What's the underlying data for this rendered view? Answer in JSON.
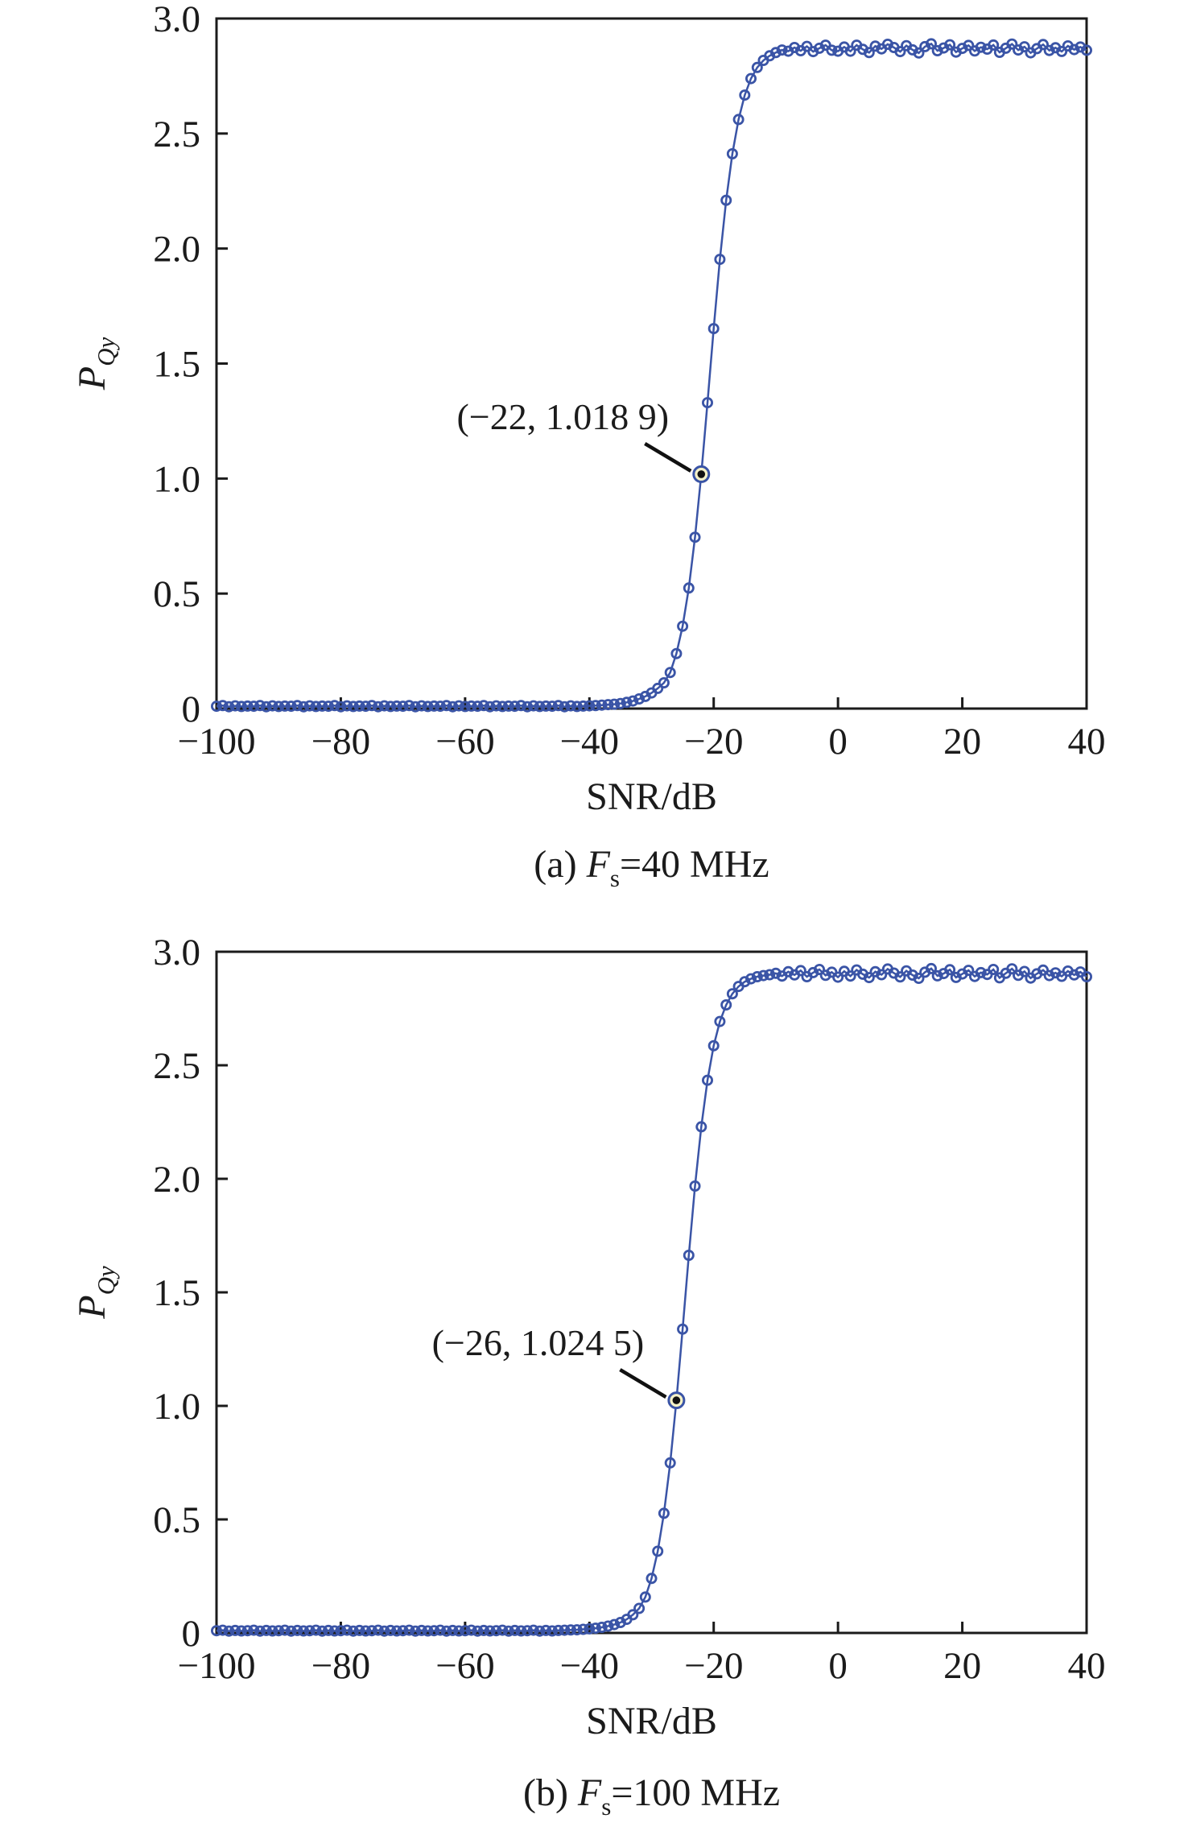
{
  "figure": {
    "background": "#ffffff",
    "panels": [
      "a",
      "b"
    ]
  },
  "chart_data": [
    {
      "type": "scatter-line",
      "panel": "a",
      "caption": {
        "prefix": "(a) ",
        "symbol": "F",
        "subscript": "s",
        "suffix": "=40 MHz"
      },
      "xlabel": "SNR/dB",
      "ylabel": {
        "symbol": "P",
        "subscript": "Qy"
      },
      "xlim": [
        -100,
        40
      ],
      "ylim": [
        0,
        3.0
      ],
      "grid": false,
      "legend": null,
      "x_ticks": {
        "values": [
          -100,
          -80,
          -60,
          -40,
          -20,
          0,
          20,
          40
        ],
        "labels": [
          "−100",
          "−80",
          "−60",
          "−40",
          "−20",
          "0",
          "20",
          "40"
        ]
      },
      "y_ticks": {
        "values": [
          0,
          0.5,
          1.0,
          1.5,
          2.0,
          2.5,
          3.0
        ],
        "labels": [
          "0",
          "0.5",
          "1.0",
          "1.5",
          "2.0",
          "2.5",
          "3.0"
        ]
      },
      "annotation": {
        "label": "(−22, 1.018 9)",
        "point": {
          "x": -22,
          "y": 1.0189
        }
      },
      "plateau_level": 2.872,
      "series": [
        {
          "name": "PQy-vs-SNR-40MHz",
          "marker": "open-circle",
          "x_start": -100,
          "x_step": 1,
          "y": [
            0.01,
            0.013,
            0.008,
            0.012,
            0.009,
            0.011,
            0.01,
            0.013,
            0.008,
            0.012,
            0.009,
            0.011,
            0.01,
            0.013,
            0.008,
            0.012,
            0.009,
            0.011,
            0.01,
            0.013,
            0.008,
            0.012,
            0.009,
            0.011,
            0.01,
            0.013,
            0.008,
            0.012,
            0.009,
            0.011,
            0.01,
            0.013,
            0.008,
            0.012,
            0.009,
            0.011,
            0.01,
            0.013,
            0.008,
            0.012,
            0.009,
            0.011,
            0.01,
            0.013,
            0.008,
            0.012,
            0.009,
            0.011,
            0.01,
            0.013,
            0.008,
            0.012,
            0.009,
            0.011,
            0.01,
            0.013,
            0.008,
            0.012,
            0.009,
            0.011,
            0.012,
            0.013,
            0.015,
            0.017,
            0.019,
            0.022,
            0.027,
            0.033,
            0.042,
            0.053,
            0.068,
            0.088,
            0.112,
            0.157,
            0.239,
            0.358,
            0.524,
            0.745,
            1.019,
            1.33,
            1.652,
            1.953,
            2.21,
            2.412,
            2.561,
            2.667,
            2.739,
            2.787,
            2.818,
            2.838,
            2.852,
            2.863,
            2.858,
            2.874,
            2.86,
            2.879,
            2.856,
            2.871,
            2.884,
            2.862,
            2.858,
            2.876,
            2.858,
            2.884,
            2.866,
            2.852,
            2.88,
            2.868,
            2.888,
            2.874,
            2.856,
            2.882,
            2.864,
            2.85,
            2.878,
            2.89,
            2.86,
            2.872,
            2.886,
            2.854,
            2.87,
            2.883,
            2.859,
            2.875,
            2.867,
            2.885,
            2.853,
            2.871,
            2.889,
            2.863,
            2.877,
            2.851,
            2.869,
            2.887,
            2.861,
            2.873,
            2.857,
            2.881,
            2.865,
            2.876,
            2.862
          ]
        }
      ],
      "colors": {
        "series": "#3a54a6",
        "axis": "#1b1b1b",
        "text": "#1b1b1b",
        "annotation_ring_fill": "#f5f2c8",
        "annotation_dot": "#111111",
        "leader": "#111111"
      }
    },
    {
      "type": "scatter-line",
      "panel": "b",
      "caption": {
        "prefix": "(b) ",
        "symbol": "F",
        "subscript": "s",
        "suffix": "=100 MHz"
      },
      "xlabel": "SNR/dB",
      "ylabel": {
        "symbol": "P",
        "subscript": "Qy"
      },
      "xlim": [
        -100,
        40
      ],
      "ylim": [
        0,
        3.0
      ],
      "grid": false,
      "legend": null,
      "x_ticks": {
        "values": [
          -100,
          -80,
          -60,
          -40,
          -20,
          0,
          20,
          40
        ],
        "labels": [
          "−100",
          "−80",
          "−60",
          "−40",
          "−20",
          "0",
          "20",
          "40"
        ]
      },
      "y_ticks": {
        "values": [
          0,
          0.5,
          1.0,
          1.5,
          2.0,
          2.5,
          3.0
        ],
        "labels": [
          "0",
          "0.5",
          "1.0",
          "1.5",
          "2.0",
          "2.5",
          "3.0"
        ]
      },
      "annotation": {
        "label": "(−26, 1.024 5)",
        "point": {
          "x": -26,
          "y": 1.0245
        }
      },
      "plateau_level": 2.905,
      "series": [
        {
          "name": "PQy-vs-SNR-100MHz",
          "marker": "open-circle",
          "x_start": -100,
          "x_step": 1,
          "y": [
            0.01,
            0.012,
            0.008,
            0.011,
            0.009,
            0.01,
            0.012,
            0.008,
            0.011,
            0.009,
            0.01,
            0.012,
            0.008,
            0.011,
            0.009,
            0.01,
            0.012,
            0.008,
            0.011,
            0.009,
            0.01,
            0.012,
            0.008,
            0.011,
            0.009,
            0.01,
            0.012,
            0.008,
            0.011,
            0.009,
            0.01,
            0.012,
            0.008,
            0.011,
            0.009,
            0.01,
            0.012,
            0.008,
            0.011,
            0.009,
            0.01,
            0.012,
            0.008,
            0.011,
            0.009,
            0.01,
            0.012,
            0.008,
            0.011,
            0.009,
            0.01,
            0.012,
            0.008,
            0.011,
            0.009,
            0.011,
            0.012,
            0.013,
            0.014,
            0.016,
            0.018,
            0.021,
            0.025,
            0.03,
            0.037,
            0.046,
            0.06,
            0.08,
            0.108,
            0.158,
            0.24,
            0.36,
            0.527,
            0.749,
            1.024,
            1.338,
            1.663,
            1.968,
            2.229,
            2.434,
            2.586,
            2.693,
            2.766,
            2.815,
            2.847,
            2.868,
            2.881,
            2.89,
            2.895,
            2.899,
            2.905,
            2.893,
            2.912,
            2.898,
            2.917,
            2.89,
            2.908,
            2.922,
            2.896,
            2.91,
            2.888,
            2.914,
            2.893,
            2.92,
            2.901,
            2.886,
            2.912,
            2.899,
            2.924,
            2.906,
            2.889,
            2.916,
            2.897,
            2.883,
            2.91,
            2.926,
            2.894,
            2.904,
            2.921,
            2.887,
            2.902,
            2.918,
            2.891,
            2.908,
            2.9,
            2.922,
            2.885,
            2.905,
            2.925,
            2.896,
            2.913,
            2.884,
            2.903,
            2.919,
            2.895,
            2.907,
            2.892,
            2.915,
            2.898,
            2.911,
            2.89
          ]
        }
      ],
      "colors": {
        "series": "#3a54a6",
        "axis": "#1b1b1b",
        "text": "#1b1b1b",
        "annotation_ring_fill": "#f5f2c8",
        "annotation_dot": "#111111",
        "leader": "#111111"
      }
    }
  ]
}
